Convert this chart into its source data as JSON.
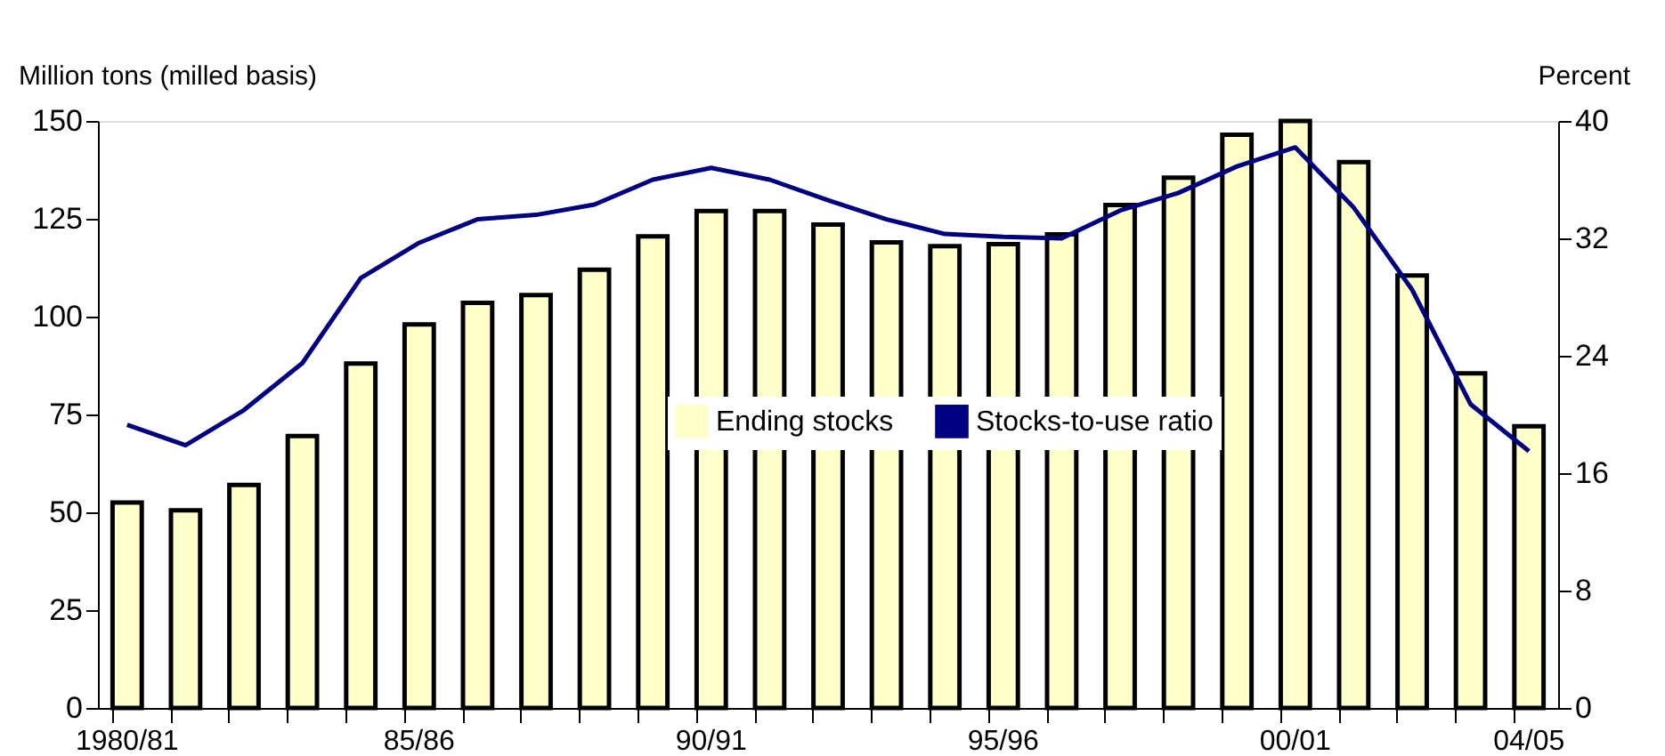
{
  "chart_data": {
    "type": "bar",
    "categories": [
      "1980/81",
      null,
      null,
      null,
      null,
      "85/86",
      null,
      null,
      null,
      null,
      "90/91",
      null,
      null,
      null,
      null,
      "95/96",
      null,
      null,
      null,
      null,
      "00/01",
      null,
      null,
      null,
      "04/05"
    ],
    "ylabel": "Million tons (milled basis)",
    "y2label": "Percent",
    "ylim": [
      0,
      150
    ],
    "yticks": [
      0,
      25,
      50,
      75,
      100,
      125,
      150
    ],
    "y2lim": [
      0,
      40
    ],
    "y2ticks": [
      0,
      8,
      16,
      24,
      32,
      40
    ],
    "grid": false,
    "legend": "center",
    "series": [
      {
        "name": "Ending stocks",
        "color": "#ffffcc",
        "values": [
          52.5,
          50.5,
          57,
          69.5,
          88,
          98,
          103.5,
          105.5,
          112,
          120.5,
          127,
          127,
          123.5,
          119,
          118,
          118.5,
          121,
          128.5,
          135.5,
          146.5,
          150,
          139.5,
          110.5,
          85.5,
          72
        ]
      },
      {
        "name": "Stocks-to-use ratio",
        "type": "line",
        "axis": "y2",
        "color": "#000080",
        "values": [
          19.3,
          17.9,
          20.3,
          23.5,
          29.3,
          31.7,
          33.3,
          33.6,
          34.3,
          36,
          36.8,
          36,
          34.6,
          33.3,
          32.3,
          32.1,
          32.0,
          33.9,
          35.1,
          36.9,
          38.2,
          34.1,
          28.5,
          20.7,
          17.5
        ]
      }
    ]
  }
}
